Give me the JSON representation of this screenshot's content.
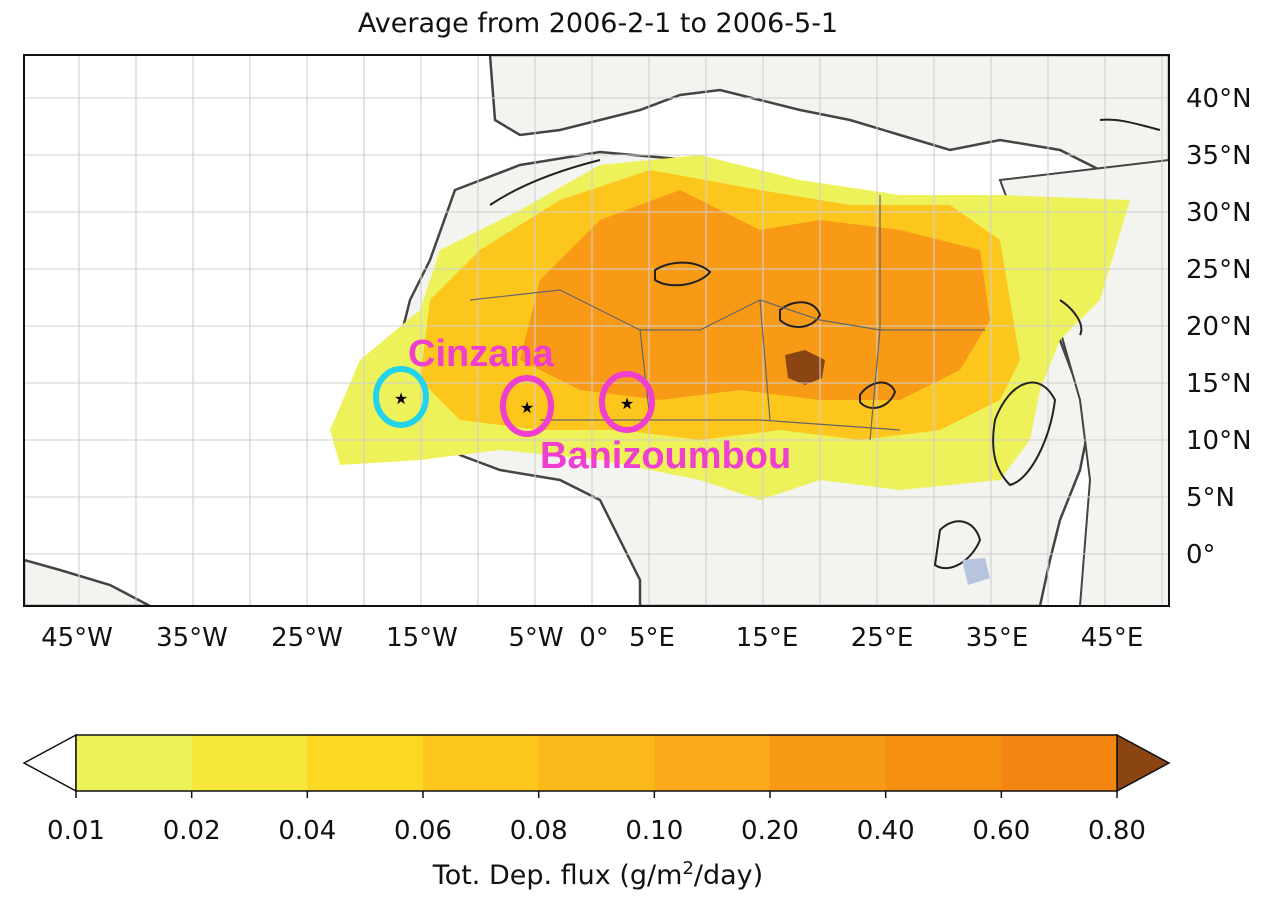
{
  "map": {
    "title": "Average from 2006-2-1 to 2006-5-1",
    "lon_ticks": [
      "45°W",
      "35°W",
      "25°W",
      "15°W",
      "5°W",
      "0°",
      "5°E",
      "15°E",
      "25°E",
      "35°E",
      "45°E"
    ],
    "lat_ticks": [
      "40°N",
      "35°N",
      "30°N",
      "25°N",
      "20°N",
      "15°N",
      "10°N",
      "5°N",
      "0°"
    ],
    "sites": [
      {
        "name": "Cinzana",
        "label": "Cinzana",
        "color": "#ee3fd0"
      },
      {
        "name": "Banizoumbou",
        "label": "Banizoumbou",
        "color": "#ee3fd0"
      },
      {
        "name": "Dakar",
        "label": "",
        "color": "#22d3ee"
      }
    ]
  },
  "colorbar": {
    "label_prefix": "Tot. Dep. flux (g/m",
    "label_sup": "2",
    "label_suffix": "/day)",
    "ticks": [
      "0.01",
      "0.02",
      "0.04",
      "0.06",
      "0.08",
      "0.10",
      "0.20",
      "0.40",
      "0.60",
      "0.80"
    ],
    "colors": [
      "#eef25a",
      "#f6e63a",
      "#fbd923",
      "#fcc61c",
      "#fbb81a",
      "#fba919",
      "#f89a15",
      "#f58f12",
      "#f38510"
    ],
    "under_color": "#ffffff",
    "over_color": "#8b4513"
  }
}
